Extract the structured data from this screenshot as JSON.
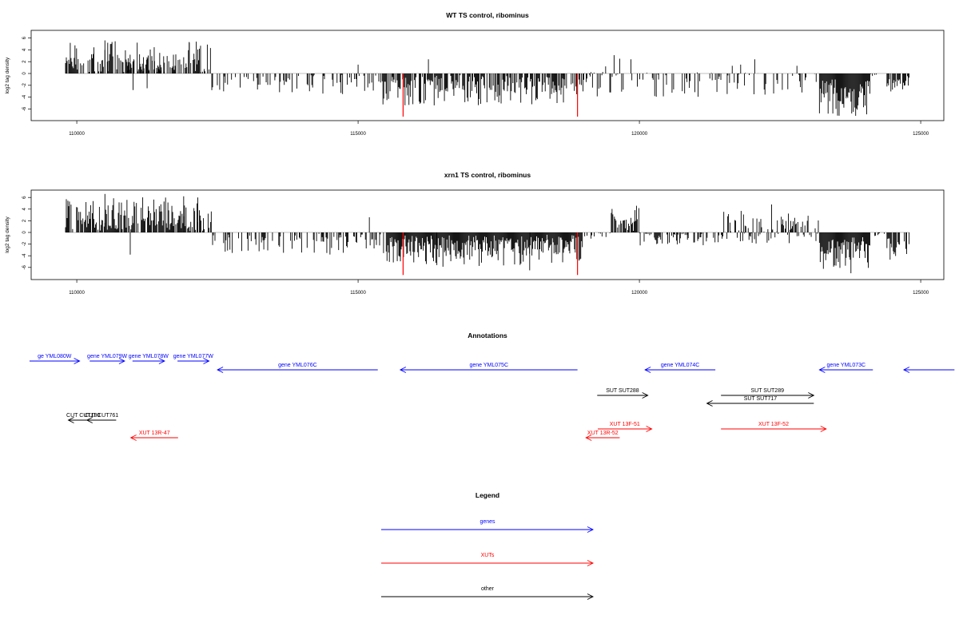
{
  "chart_data": [
    {
      "type": "bar",
      "title": "WT TS control, ribominus",
      "ylabel": "log2 tag density",
      "xlabel": "",
      "xlim": [
        109800,
        124800
      ],
      "ylim": [
        -7.5,
        7
      ],
      "xticks": [
        110000,
        115000,
        120000,
        125000
      ],
      "xtick_labels": [
        "110000",
        "115000",
        "120000",
        "125000"
      ],
      "yticks": [
        6,
        4,
        2,
        0,
        -2,
        -4,
        -6
      ],
      "ytick_labels": [
        "6",
        "4",
        "2",
        "0",
        "-2",
        "-4",
        "-6"
      ],
      "grid": false,
      "bar_color": "#000000",
      "regions": [
        {
          "start": 109800,
          "end": 112400,
          "min": 0.3,
          "max": 5.5,
          "density": 0.6
        },
        {
          "start": 110900,
          "end": 111600,
          "min": 0.5,
          "max": 5.0,
          "density": 0.6
        },
        {
          "start": 112400,
          "end": 115400,
          "min": -3.5,
          "max": -0.2,
          "density": 0.25
        },
        {
          "start": 115400,
          "end": 118900,
          "min": -5.5,
          "max": -0.3,
          "density": 0.7
        },
        {
          "start": 118900,
          "end": 123200,
          "min": -4,
          "max": 0.3,
          "density": 0.3
        },
        {
          "start": 123200,
          "end": 124100,
          "min": -7.2,
          "max": -1.5,
          "density": 1.0
        },
        {
          "start": 124100,
          "end": 124400,
          "min": -0.5,
          "max": -0.1,
          "density": 0.2
        },
        {
          "start": 124400,
          "end": 124800,
          "min": -3.5,
          "max": -0.5,
          "density": 0.7
        }
      ],
      "spikes": [
        {
          "x": 110200,
          "y": 2.2
        },
        {
          "x": 110500,
          "y": 5.6
        },
        {
          "x": 110550,
          "y": 5.2
        },
        {
          "x": 112000,
          "y": 5.2
        },
        {
          "x": 112200,
          "y": 4.7
        },
        {
          "x": 115000,
          "y": 1.5
        },
        {
          "x": 116250,
          "y": 2.4
        },
        {
          "x": 119400,
          "y": 1.2
        },
        {
          "x": 119550,
          "y": 3.1
        },
        {
          "x": 119650,
          "y": 2.5
        },
        {
          "x": 119850,
          "y": 2.4
        },
        {
          "x": 121650,
          "y": 1.3
        },
        {
          "x": 121800,
          "y": 1.5
        },
        {
          "x": 122050,
          "y": 2.4
        },
        {
          "x": 122800,
          "y": 1.3
        },
        {
          "x": 111000,
          "y": -2.8
        },
        {
          "x": 111250,
          "y": -2.5
        },
        {
          "x": 118650,
          "y": -4.9
        }
      ],
      "markers": [
        {
          "x": 115800,
          "y": -7.3,
          "color": "#ff0000"
        },
        {
          "x": 118900,
          "y": -7.3,
          "color": "#ff0000"
        }
      ]
    },
    {
      "type": "bar",
      "title": "xrn1 TS control, ribominus",
      "ylabel": "log2 tag density",
      "xlabel": "",
      "xlim": [
        109800,
        124800
      ],
      "ylim": [
        -7.5,
        7
      ],
      "xticks": [
        110000,
        115000,
        120000,
        125000
      ],
      "xtick_labels": [
        "110000",
        "115000",
        "120000",
        "125000"
      ],
      "yticks": [
        6,
        4,
        2,
        0,
        -2,
        -4,
        -6
      ],
      "ytick_labels": [
        "6",
        "4",
        "2",
        "0",
        "-2",
        "-4",
        "-6"
      ],
      "grid": false,
      "bar_color": "#000000",
      "regions": [
        {
          "start": 109800,
          "end": 112400,
          "min": 0.4,
          "max": 6.3,
          "density": 0.8
        },
        {
          "start": 112400,
          "end": 115500,
          "min": -3.8,
          "max": -0.3,
          "density": 0.4
        },
        {
          "start": 115500,
          "end": 119000,
          "min": -6,
          "max": -0.5,
          "density": 1.0
        },
        {
          "start": 119000,
          "end": 119500,
          "min": -1.2,
          "max": -0.1,
          "density": 0.3
        },
        {
          "start": 119500,
          "end": 120000,
          "min": 0.5,
          "max": 4.8,
          "density": 0.8
        },
        {
          "start": 120000,
          "end": 121500,
          "min": -2.3,
          "max": -0.2,
          "density": 0.4
        },
        {
          "start": 121500,
          "end": 123200,
          "min": -2.5,
          "max": 4.5,
          "density": 0.6
        },
        {
          "start": 123200,
          "end": 124100,
          "min": -7,
          "max": -1.5,
          "density": 1.0
        },
        {
          "start": 124100,
          "end": 124400,
          "min": -0.6,
          "max": -0.1,
          "density": 0.2
        },
        {
          "start": 124400,
          "end": 124800,
          "min": -5,
          "max": -0.8,
          "density": 0.8
        }
      ],
      "spikes": [
        {
          "x": 110500,
          "y": 6.6
        },
        {
          "x": 111900,
          "y": 6.2
        },
        {
          "x": 112150,
          "y": 6.0
        },
        {
          "x": 115200,
          "y": 2.6
        },
        {
          "x": 122350,
          "y": 4.8
        },
        {
          "x": 110950,
          "y": -3.8
        },
        {
          "x": 118050,
          "y": -6.5
        },
        {
          "x": 116400,
          "y": -5.6
        }
      ],
      "markers": [
        {
          "x": 115800,
          "y": -7.3,
          "color": "#ff0000"
        },
        {
          "x": 118900,
          "y": -7.3,
          "color": "#ff0000"
        }
      ]
    }
  ],
  "annotations": {
    "title": "Annotations",
    "colors": {
      "genes": "#0000ff",
      "XUTs": "#ff0000",
      "other": "#000000"
    },
    "features": [
      {
        "label": "ge YML080W",
        "start": 109160,
        "end": 110050,
        "strand": "+",
        "type": "genes",
        "row": 0
      },
      {
        "label": "gene YML079W",
        "start": 110230,
        "end": 110850,
        "strand": "+",
        "type": "genes",
        "row": 0
      },
      {
        "label": "gene YML078W",
        "start": 110990,
        "end": 111560,
        "strand": "+",
        "type": "genes",
        "row": 0
      },
      {
        "label": "gene YML077W",
        "start": 111790,
        "end": 112350,
        "strand": "+",
        "type": "genes",
        "row": 0
      },
      {
        "label": "gene YML076C",
        "start": 112500,
        "end": 115350,
        "strand": "-",
        "type": "genes",
        "row": 1
      },
      {
        "label": "gene YML075C",
        "start": 115750,
        "end": 118900,
        "strand": "-",
        "type": "genes",
        "row": 1
      },
      {
        "label": "gene YML074C",
        "start": 120100,
        "end": 121350,
        "strand": "-",
        "type": "genes",
        "row": 1
      },
      {
        "label": "gene YML073C",
        "start": 123200,
        "end": 124150,
        "strand": "-",
        "type": "genes",
        "row": 1
      },
      {
        "label": "",
        "start": 124700,
        "end": 125600,
        "strand": "-",
        "type": "genes",
        "row": 1
      },
      {
        "label": "SUT SUT288",
        "start": 119250,
        "end": 120150,
        "strand": "+",
        "type": "other",
        "row": 2
      },
      {
        "label": "SUT SUT289",
        "start": 121450,
        "end": 123100,
        "strand": "+",
        "type": "other",
        "row": 2
      },
      {
        "label": "SUT SUT717",
        "start": 121200,
        "end": 123100,
        "strand": "-",
        "type": "other",
        "row": 3
      },
      {
        "label": "CUT CUT180",
        "start": 109850,
        "end": 110380,
        "strand": "-",
        "type": "other",
        "row": 4
      },
      {
        "label": "CUT CUT761",
        "start": 110180,
        "end": 110700,
        "strand": "-",
        "type": "other",
        "row": 4
      },
      {
        "label": "XUT 13F-51",
        "start": 119260,
        "end": 120220,
        "strand": "+",
        "type": "XUTs",
        "row": 5
      },
      {
        "label": "XUT 13F-52",
        "start": 121450,
        "end": 123320,
        "strand": "+",
        "type": "XUTs",
        "row": 5
      },
      {
        "label": "XUT 13R-47",
        "start": 110960,
        "end": 111800,
        "strand": "-",
        "type": "XUTs",
        "row": 6
      },
      {
        "label": "XUT 13R-52",
        "start": 119050,
        "end": 119650,
        "strand": "-",
        "type": "XUTs",
        "row": 6
      }
    ]
  },
  "legend": {
    "title": "Legend",
    "items": [
      {
        "label": "genes",
        "color": "#0000ff"
      },
      {
        "label": "XUTs",
        "color": "#ff0000"
      },
      {
        "label": "other",
        "color": "#000000"
      }
    ]
  }
}
